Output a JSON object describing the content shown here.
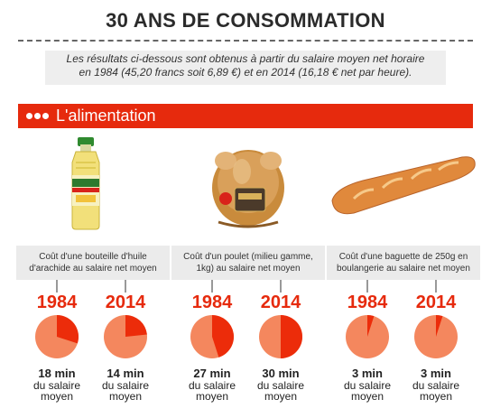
{
  "title": "30 ANS DE CONSOMMATION",
  "intro": {
    "line1": "Les résultats ci-dessous sont obtenus à partir du salaire moyen net horaire",
    "line2": "en 1984 (45,20 francs soit 6,89 €) et en 2014 (16,18 € net par heure)."
  },
  "section": {
    "label": "L'alimentation"
  },
  "colors": {
    "accent": "#e62a0d",
    "pie_base": "#f4875e",
    "pie_fill": "#ec2c0a"
  },
  "items": [
    {
      "caption": "Coût d'une bouteille d'huile d'arachide au salaire net moyen",
      "icon": "oil-bottle-icon",
      "years": [
        {
          "year": "1984",
          "minutes": 18,
          "value": "18 min",
          "unit": "du salaire moyen"
        },
        {
          "year": "2014",
          "minutes": 14,
          "value": "14 min",
          "unit": "du salaire moyen"
        }
      ]
    },
    {
      "caption": "Coût d'un poulet (milieu gamme, 1kg) au salaire net moyen",
      "icon": "roast-chicken-icon",
      "years": [
        {
          "year": "1984",
          "minutes": 27,
          "value": "27 min",
          "unit": "du salaire moyen"
        },
        {
          "year": "2014",
          "minutes": 30,
          "value": "30 min",
          "unit": "du salaire moyen"
        }
      ]
    },
    {
      "caption": "Coût d'une baguette de 250g en boulangerie au salaire net moyen",
      "icon": "baguette-icon",
      "years": [
        {
          "year": "1984",
          "minutes": 3,
          "value": "3 min",
          "unit": "du salaire moyen"
        },
        {
          "year": "2014",
          "minutes": 3,
          "value": "3 min",
          "unit": "du salaire moyen"
        }
      ]
    }
  ]
}
